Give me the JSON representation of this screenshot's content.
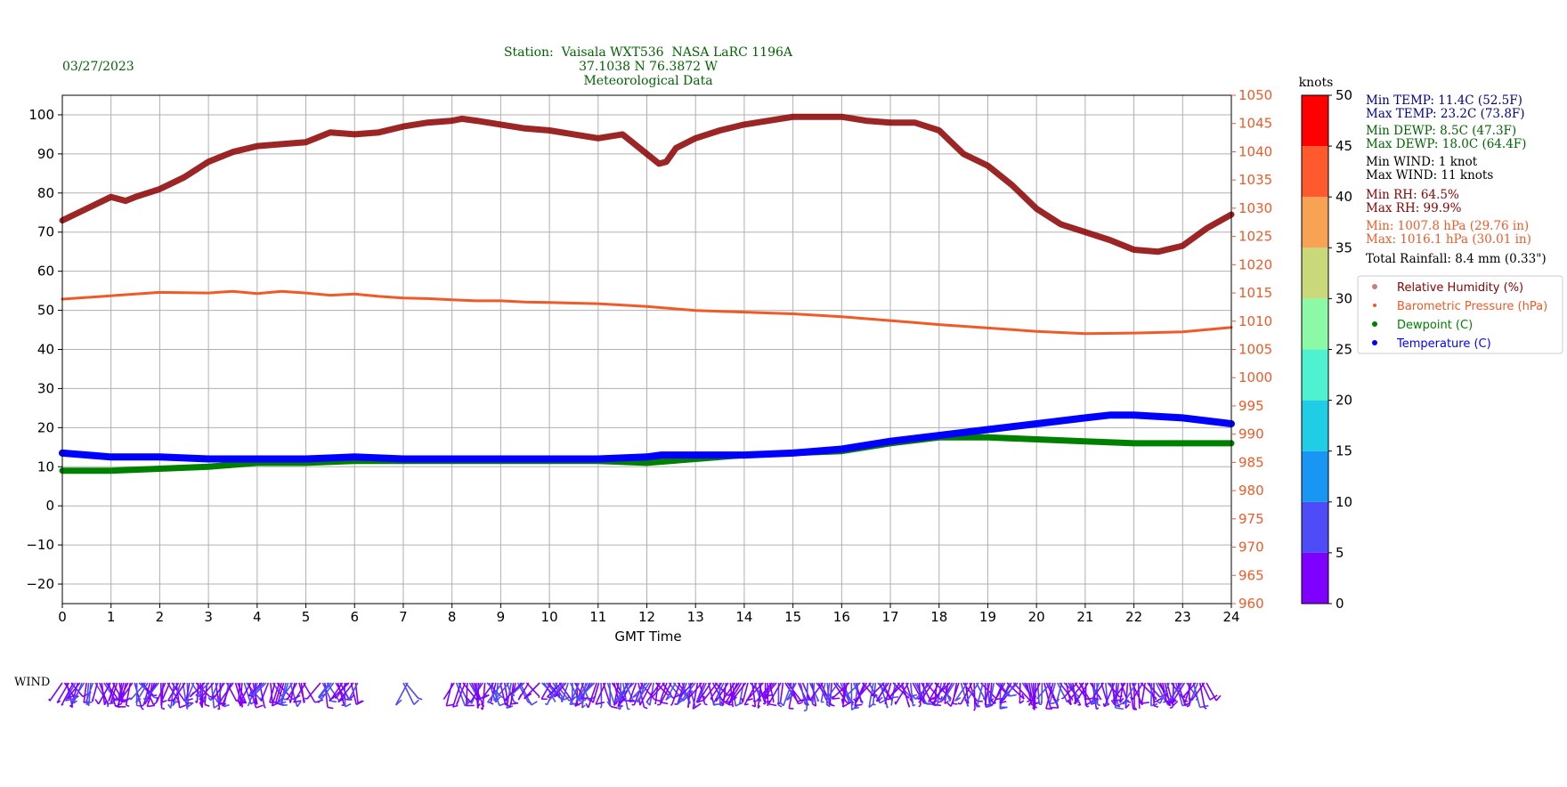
{
  "header": {
    "date": "03/27/2023",
    "station_line": "Station:  Vaisala WXT536  NASA LaRC 1196A",
    "coords_line": "37.1038 N 76.3872 W",
    "subtitle": "Meteorological Data"
  },
  "colors": {
    "rh": "#8b0000",
    "pressure": "#f05a28",
    "dewpoint": "#008000",
    "temperature": "#0000ff",
    "header_text": "#006400",
    "temp_stats": "#00008b",
    "rh_stats": "#8b0000"
  },
  "stats": {
    "min_temp": "Min TEMP: 11.4C (52.5F)",
    "max_temp": "Max TEMP: 23.2C (73.8F)",
    "min_dewp": "Min DEWP: 8.5C (47.3F)",
    "max_dewp": "Max DEWP: 18.0C (64.4F)",
    "min_wind": "Min WIND: 1 knot",
    "max_wind": "Max WIND: 11 knots",
    "min_rh": "Min RH: 64.5%",
    "max_rh": "Max RH: 99.9%",
    "min_pres": "Min: 1007.8 hPa (29.76 in)",
    "max_pres": "Max: 1016.1 hPa (30.01 in)",
    "rainfall": "Total Rainfall: 8.4 mm (0.33\")"
  },
  "wind_label": "WIND",
  "chart_data": {
    "type": "line",
    "xlabel": "GMT Time",
    "xlim": [
      0,
      24
    ],
    "x_ticks": [
      "0",
      "1",
      "2",
      "3",
      "4",
      "5",
      "6",
      "7",
      "8",
      "9",
      "10",
      "11",
      "12",
      "13",
      "14",
      "15",
      "16",
      "17",
      "18",
      "19",
      "20",
      "21",
      "22",
      "23",
      "24"
    ],
    "left_axis": {
      "ylim": [
        -25,
        105
      ],
      "ticks": [
        "−20",
        "−10",
        "0",
        "10",
        "20",
        "30",
        "40",
        "50",
        "60",
        "70",
        "80",
        "90",
        "100"
      ],
      "tick_values": [
        -20,
        -10,
        0,
        10,
        20,
        30,
        40,
        50,
        60,
        70,
        80,
        90,
        100
      ]
    },
    "right_axis": {
      "ylim": [
        960,
        1050
      ],
      "ticks": [
        "960",
        "965",
        "970",
        "975",
        "980",
        "985",
        "990",
        "995",
        "1000",
        "1005",
        "1010",
        "1015",
        "1020",
        "1025",
        "1030",
        "1035",
        "1040",
        "1045",
        "1050"
      ],
      "tick_values": [
        960,
        965,
        970,
        975,
        980,
        985,
        990,
        995,
        1000,
        1005,
        1010,
        1015,
        1020,
        1025,
        1030,
        1035,
        1040,
        1045,
        1050
      ]
    },
    "grid": true,
    "legend_position": "right",
    "legend": [
      {
        "label": "Relative Humidity (%)",
        "key": "rh"
      },
      {
        "label": "Barometric Pressure (hPa)",
        "key": "pressure"
      },
      {
        "label": "Dewpoint (C)",
        "key": "dewpoint"
      },
      {
        "label": "Temperature (C)",
        "key": "temperature"
      }
    ],
    "series": [
      {
        "name": "Relative Humidity (%)",
        "key": "rh",
        "axis": "left",
        "x": [
          0,
          0.5,
          1,
          1.3,
          1.5,
          2,
          2.5,
          3,
          3.5,
          4,
          4.5,
          5,
          5.5,
          6,
          6.5,
          7,
          7.5,
          8,
          8.2,
          8.5,
          9,
          9.5,
          10,
          10.5,
          11,
          11.5,
          12,
          12.25,
          12.4,
          12.6,
          13,
          13.5,
          14,
          14.5,
          15,
          15.5,
          16,
          16.5,
          17,
          17.5,
          18,
          18.5,
          19,
          19.5,
          20,
          20.5,
          21,
          21.5,
          22,
          22.5,
          23,
          23.5,
          24
        ],
        "y": [
          73,
          76,
          79,
          78,
          79,
          81,
          84,
          88,
          90.5,
          92,
          92.5,
          93,
          95.5,
          95,
          95.5,
          97,
          98,
          98.5,
          99,
          98.5,
          97.5,
          96.5,
          96,
          95,
          94,
          95,
          90,
          87.5,
          88,
          91.5,
          94,
          96,
          97.5,
          98.5,
          99.5,
          99.5,
          99.5,
          98.5,
          98,
          98,
          96,
          90,
          87,
          82,
          76,
          72,
          70,
          68,
          65.5,
          65,
          66.5,
          71,
          74.5
        ]
      },
      {
        "name": "Barometric Pressure (hPa)",
        "key": "pressure",
        "axis": "right",
        "x": [
          0,
          1,
          2,
          3,
          3.5,
          4,
          4.5,
          5,
          5.5,
          6,
          6.5,
          7,
          7.5,
          8,
          8.5,
          9,
          9.5,
          10,
          11,
          12,
          13,
          14,
          15,
          16,
          17,
          18,
          19,
          20,
          21,
          22,
          23,
          24
        ],
        "y": [
          1013.9,
          1014.5,
          1015.1,
          1015.0,
          1015.3,
          1014.9,
          1015.3,
          1015.0,
          1014.6,
          1014.8,
          1014.4,
          1014.1,
          1014.0,
          1013.8,
          1013.6,
          1013.6,
          1013.4,
          1013.3,
          1013.1,
          1012.6,
          1011.9,
          1011.6,
          1011.3,
          1010.8,
          1010.1,
          1009.4,
          1008.8,
          1008.2,
          1007.8,
          1007.9,
          1008.1,
          1008.9
        ]
      },
      {
        "name": "Dewpoint (C)",
        "key": "dewpoint",
        "axis": "left",
        "x": [
          0,
          1,
          2,
          3,
          4,
          5,
          6,
          7,
          8,
          9,
          10,
          11,
          12,
          13,
          14,
          15,
          16,
          17,
          18,
          19,
          20,
          21,
          22,
          23,
          24
        ],
        "y": [
          9,
          9,
          9.5,
          10,
          11,
          11,
          11.5,
          11.5,
          11.5,
          11.5,
          11.5,
          11.5,
          11,
          12,
          13,
          13.5,
          14,
          16,
          17.5,
          17.5,
          17,
          16.5,
          16,
          16,
          16
        ]
      },
      {
        "name": "Temperature (C)",
        "key": "temperature",
        "axis": "left",
        "x": [
          0,
          1,
          2,
          3,
          4,
          5,
          6,
          7,
          8,
          9,
          10,
          11,
          12,
          12.3,
          13,
          14,
          15,
          16,
          17,
          18,
          19,
          20,
          21,
          21.5,
          22,
          23,
          24
        ],
        "y": [
          13.5,
          12.5,
          12.5,
          12,
          12,
          12,
          12.5,
          12,
          12,
          12,
          12,
          12,
          12.5,
          13,
          13,
          13,
          13.5,
          14.5,
          16.5,
          18,
          19.5,
          21,
          22.5,
          23.2,
          23.2,
          22.5,
          21
        ]
      }
    ],
    "wind": {
      "label": "knots",
      "colorbar_ticks": [
        "0",
        "5",
        "10",
        "15",
        "20",
        "25",
        "30",
        "35",
        "40",
        "45",
        "50"
      ],
      "colorbar_values": [
        0,
        5,
        10,
        15,
        20,
        25,
        30,
        35,
        40,
        45,
        50
      ],
      "colorbar_colors": [
        "#7f00ff",
        "#4e4bf9",
        "#1996f3",
        "#1fcde4",
        "#4ff2d0",
        "#8cf9a6",
        "#c9d97a",
        "#f8a254",
        "#ff5a2d",
        "#ff0000"
      ],
      "segments": [
        [
          0,
          5
        ],
        [
          5.3,
          6.1
        ],
        [
          7,
          7.1
        ],
        [
          8,
          9.6
        ],
        [
          9.8,
          15.2
        ],
        [
          15.3,
          23.5
        ]
      ],
      "typical_speed_knots": 4,
      "max_speed_knots": 11
    }
  }
}
